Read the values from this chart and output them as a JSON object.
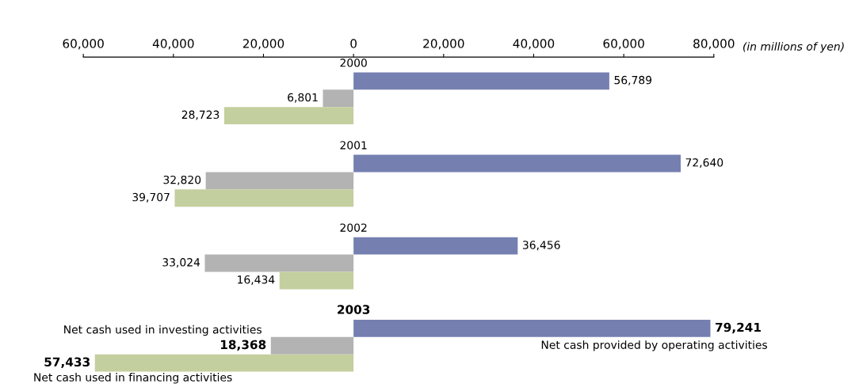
{
  "chart_data": {
    "type": "bar",
    "orientation": "horizontal",
    "xlabel": "(in millions of yen)",
    "categories": [
      "2000",
      "2001",
      "2002",
      "2003"
    ],
    "series": [
      {
        "name": "Net cash provided by operating activities",
        "color": "#7580b0",
        "values": [
          56789,
          72640,
          36456,
          79241
        ],
        "value_labels": [
          "56,789",
          "72,640",
          "36,456",
          "79,241"
        ]
      },
      {
        "name": "Net cash used in investing activities",
        "color": "#b3b3b3",
        "base": [
          -6801,
          -32820,
          -33024,
          -18368
        ],
        "values": [
          6801,
          32820,
          33024,
          18368
        ],
        "value_labels": [
          "6,801",
          "32,820",
          "33,024",
          "18,368"
        ]
      },
      {
        "name": "Net cash used in financing activities",
        "color": "#c3cf9f",
        "base": [
          -28723,
          -39707,
          -16434,
          -57433
        ],
        "values": [
          28723,
          39707,
          16434,
          57433
        ],
        "value_labels": [
          "28,723",
          "39,707",
          "16,434",
          "57,433"
        ]
      }
    ],
    "xlim": [
      -60000,
      80000
    ],
    "xticks": [
      {
        "value": -60000,
        "label": "60,000"
      },
      {
        "value": -40000,
        "label": "40,000"
      },
      {
        "value": -20000,
        "label": "20,000"
      },
      0,
      {
        "value": 20000,
        "label": "20,000"
      },
      {
        "value": 40000,
        "label": "40,000"
      },
      {
        "value": 60000,
        "label": "60,000"
      },
      {
        "value": 80000,
        "label": "80,000"
      }
    ],
    "grid": false
  }
}
